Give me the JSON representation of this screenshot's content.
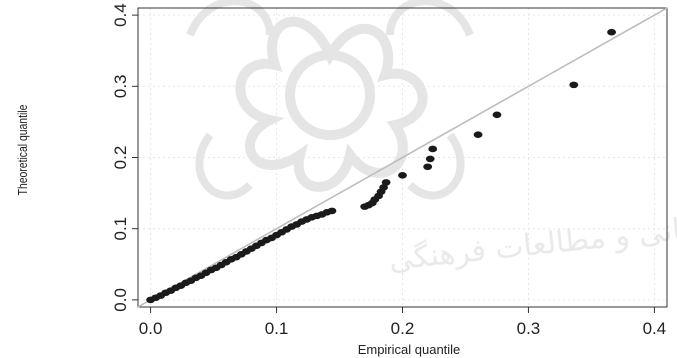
{
  "chart_data": {
    "type": "scatter",
    "title": "",
    "xlabel": "Empirical quantile",
    "ylabel": "Theoretical quantile",
    "xlim": [
      -0.01,
      0.41
    ],
    "ylim": [
      -0.01,
      0.41
    ],
    "xticks": [
      0.0,
      0.1,
      0.2,
      0.3,
      0.4
    ],
    "yticks": [
      0.0,
      0.1,
      0.2,
      0.3,
      0.4
    ],
    "xtick_labels": [
      "0.0",
      "0.1",
      "0.2",
      "0.3",
      "0.4"
    ],
    "ytick_labels": [
      "0.0",
      "0.1",
      "0.2",
      "0.3",
      "0.4"
    ],
    "grid": true,
    "reference_line": {
      "slope": 1,
      "intercept": 0,
      "color": "#bdbdbd"
    },
    "point_color": "#1a1a1a",
    "points": [
      {
        "x": 0.0,
        "y": 0.0
      },
      {
        "x": 0.004,
        "y": 0.003
      },
      {
        "x": 0.008,
        "y": 0.006
      },
      {
        "x": 0.012,
        "y": 0.01
      },
      {
        "x": 0.016,
        "y": 0.013
      },
      {
        "x": 0.02,
        "y": 0.017
      },
      {
        "x": 0.024,
        "y": 0.02
      },
      {
        "x": 0.028,
        "y": 0.024
      },
      {
        "x": 0.032,
        "y": 0.027
      },
      {
        "x": 0.036,
        "y": 0.031
      },
      {
        "x": 0.04,
        "y": 0.034
      },
      {
        "x": 0.044,
        "y": 0.038
      },
      {
        "x": 0.048,
        "y": 0.042
      },
      {
        "x": 0.052,
        "y": 0.045
      },
      {
        "x": 0.056,
        "y": 0.049
      },
      {
        "x": 0.06,
        "y": 0.053
      },
      {
        "x": 0.064,
        "y": 0.057
      },
      {
        "x": 0.068,
        "y": 0.06
      },
      {
        "x": 0.072,
        "y": 0.064
      },
      {
        "x": 0.076,
        "y": 0.068
      },
      {
        "x": 0.08,
        "y": 0.072
      },
      {
        "x": 0.084,
        "y": 0.076
      },
      {
        "x": 0.088,
        "y": 0.08
      },
      {
        "x": 0.092,
        "y": 0.084
      },
      {
        "x": 0.096,
        "y": 0.087
      },
      {
        "x": 0.1,
        "y": 0.091
      },
      {
        "x": 0.104,
        "y": 0.095
      },
      {
        "x": 0.108,
        "y": 0.099
      },
      {
        "x": 0.112,
        "y": 0.103
      },
      {
        "x": 0.116,
        "y": 0.106
      },
      {
        "x": 0.12,
        "y": 0.11
      },
      {
        "x": 0.124,
        "y": 0.113
      },
      {
        "x": 0.128,
        "y": 0.116
      },
      {
        "x": 0.132,
        "y": 0.118
      },
      {
        "x": 0.136,
        "y": 0.12
      },
      {
        "x": 0.14,
        "y": 0.123
      },
      {
        "x": 0.144,
        "y": 0.125
      },
      {
        "x": 0.17,
        "y": 0.131
      },
      {
        "x": 0.173,
        "y": 0.133
      },
      {
        "x": 0.176,
        "y": 0.136
      },
      {
        "x": 0.178,
        "y": 0.141
      },
      {
        "x": 0.181,
        "y": 0.146
      },
      {
        "x": 0.183,
        "y": 0.152
      },
      {
        "x": 0.185,
        "y": 0.158
      },
      {
        "x": 0.187,
        "y": 0.165
      },
      {
        "x": 0.2,
        "y": 0.175
      },
      {
        "x": 0.22,
        "y": 0.187
      },
      {
        "x": 0.222,
        "y": 0.198
      },
      {
        "x": 0.224,
        "y": 0.212
      },
      {
        "x": 0.26,
        "y": 0.232
      },
      {
        "x": 0.275,
        "y": 0.26
      },
      {
        "x": 0.336,
        "y": 0.302
      },
      {
        "x": 0.366,
        "y": 0.376
      }
    ]
  }
}
